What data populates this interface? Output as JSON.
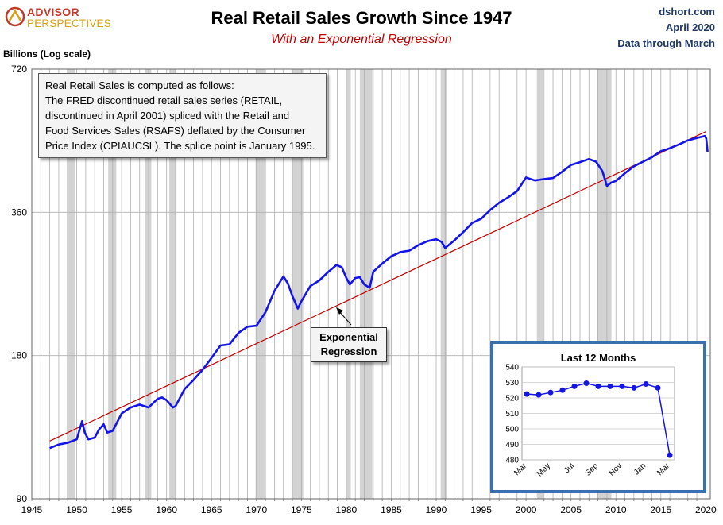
{
  "header": {
    "logo_line1": "ADVISOR",
    "logo_line2": "PERSPECTIVES",
    "title": "Real Retail Sales Growth Since 1947",
    "subtitle": "With an Exponential Regression",
    "source_line1": "dshort.com",
    "source_line2": "April 2020",
    "source_line3": "Data through March"
  },
  "note_lines": [
    "Real Retail Sales is computed as follows:",
    "The FRED discontinued retail sales series (RETAIL,",
    "discontinued in April 2001) spliced with the Retail and",
    "Food Services Sales (RSAFS) deflated by the Consumer",
    "Price Index (CPIAUCSL). The splice point is January 1995."
  ],
  "regression_label": {
    "line1": "Exponential",
    "line2": "Regression"
  },
  "colors": {
    "series": "#1414e6",
    "regression": "#c00000",
    "recession": "#d3d3d3",
    "grid": "#b0b0b0",
    "inset_border": "#3a6fb0"
  },
  "chart_data": [
    {
      "type": "line",
      "title": "Real Retail Sales Growth Since 1947",
      "subtitle": "With an Exponential Regression",
      "ylabel": "Billions (Log scale)",
      "xlabel": "",
      "yscale": "log",
      "ylim": [
        90,
        720
      ],
      "xlim": [
        1945,
        2020.5
      ],
      "y_ticks": [
        90,
        180,
        360,
        720
      ],
      "x_ticks": [
        1945,
        1950,
        1955,
        1960,
        1965,
        1970,
        1975,
        1980,
        1985,
        1990,
        1995,
        2000,
        2005,
        2010,
        2015,
        2020
      ],
      "grid": "vertical lines every year, horizontal at y ticks",
      "recessions": [
        [
          1948.9,
          1949.8
        ],
        [
          1953.5,
          1954.4
        ],
        [
          1957.6,
          1958.3
        ],
        [
          1960.3,
          1961.1
        ],
        [
          1969.9,
          1970.9
        ],
        [
          1973.9,
          1975.2
        ],
        [
          1980.0,
          1980.5
        ],
        [
          1981.5,
          1982.9
        ],
        [
          1990.5,
          1991.2
        ],
        [
          2001.2,
          2001.9
        ],
        [
          2007.9,
          2009.5
        ]
      ],
      "series": [
        {
          "name": "Real Retail Sales",
          "x": [
            1947.0,
            1948.0,
            1949.0,
            1950.0,
            1950.6,
            1950.9,
            1951.3,
            1952.0,
            1952.5,
            1953.0,
            1953.4,
            1954.0,
            1955.0,
            1956.0,
            1957.0,
            1958.0,
            1959.0,
            1959.5,
            1960.0,
            1960.7,
            1961.0,
            1962.0,
            1963.0,
            1964.0,
            1965.0,
            1966.0,
            1967.0,
            1968.0,
            1969.0,
            1970.0,
            1971.0,
            1972.0,
            1973.0,
            1973.5,
            1974.0,
            1974.6,
            1975.0,
            1976.0,
            1977.0,
            1978.0,
            1978.9,
            1979.5,
            1980.0,
            1980.4,
            1981.0,
            1981.5,
            1982.0,
            1982.6,
            1983.0,
            1984.0,
            1985.0,
            1986.0,
            1987.0,
            1988.0,
            1989.0,
            1990.0,
            1990.6,
            1991.0,
            1992.0,
            1993.0,
            1994.0,
            1995.0,
            1996.0,
            1997.0,
            1998.0,
            1999.0,
            2000.0,
            2001.0,
            2002.0,
            2003.0,
            2004.0,
            2005.0,
            2006.0,
            2007.0,
            2007.8,
            2008.5,
            2009.0,
            2009.5,
            2010.0,
            2011.0,
            2012.0,
            2013.0,
            2014.0,
            2015.0,
            2016.0,
            2017.0,
            2018.0,
            2019.0,
            2019.9,
            2020.05,
            2020.2
          ],
          "values": [
            115,
            117,
            118,
            120,
            131,
            124,
            120,
            121,
            126,
            129,
            124,
            125,
            136,
            140,
            142,
            140,
            146,
            147,
            145,
            140,
            141,
            153,
            160,
            168,
            178,
            189,
            190,
            201,
            207,
            208,
            222,
            246,
            264,
            255,
            240,
            226,
            234,
            252,
            259,
            270,
            279,
            276,
            262,
            254,
            262,
            263,
            254,
            250,
            270,
            281,
            291,
            297,
            299,
            307,
            313,
            316,
            312,
            303,
            314,
            327,
            342,
            349,
            364,
            377,
            387,
            399,
            426,
            420,
            423,
            425,
            438,
            453,
            459,
            466,
            460,
            439,
            409,
            416,
            419,
            435,
            450,
            460,
            470,
            484,
            491,
            500,
            510,
            516,
            521,
            515,
            482
          ]
        },
        {
          "name": "Exponential Regression",
          "x": [
            1947.0,
            2020.0
          ],
          "values": [
            119.0,
            532.0
          ]
        }
      ]
    },
    {
      "type": "line",
      "title": "Last 12 Months",
      "xlabel": "",
      "ylabel": "",
      "ylim": [
        480,
        540
      ],
      "y_ticks": [
        480,
        490,
        500,
        510,
        520,
        530,
        540
      ],
      "categories": [
        "Mar",
        "Apr",
        "May",
        "Jun",
        "Jul",
        "Aug",
        "Sep",
        "Oct",
        "Nov",
        "Dec",
        "Jan",
        "Feb",
        "Mar"
      ],
      "tick_labels": [
        "Mar",
        "May",
        "Jul",
        "Sep",
        "Nov",
        "Jan",
        "Mar"
      ],
      "values": [
        522.5,
        522.0,
        523.5,
        525.0,
        527.5,
        529.5,
        527.5,
        527.5,
        527.5,
        526.5,
        529.0,
        526.5,
        483.0
      ]
    }
  ]
}
